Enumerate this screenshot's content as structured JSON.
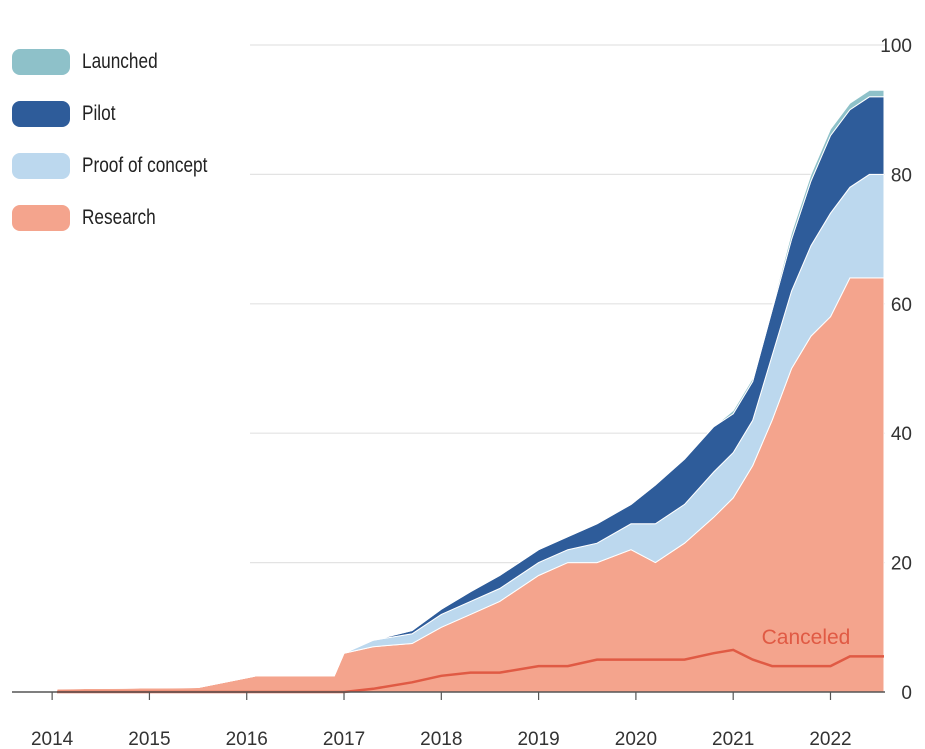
{
  "chart_data": {
    "type": "area",
    "stacked": true,
    "x_ticks": [
      "2014",
      "2015",
      "2016",
      "2017",
      "2018",
      "2019",
      "2020",
      "2021",
      "2022"
    ],
    "y_ticks": [
      0,
      20,
      40,
      60,
      80,
      100
    ],
    "ylim": [
      0,
      100
    ],
    "xlim": [
      2013.8,
      2022.7
    ],
    "grid": true,
    "legend_position": "top-left",
    "x": [
      2014.05,
      2015.5,
      2016.1,
      2016.9,
      2017.0,
      2017.3,
      2017.7,
      2018.0,
      2018.3,
      2018.6,
      2019.0,
      2019.3,
      2019.6,
      2019.95,
      2020.2,
      2020.5,
      2020.8,
      2021.0,
      2021.2,
      2021.4,
      2021.6,
      2021.8,
      2022.0,
      2022.2,
      2022.4,
      2022.55
    ],
    "series": [
      {
        "name": "Research",
        "values": [
          0.5,
          0.7,
          2.5,
          2.5,
          6,
          7,
          7.5,
          10,
          12,
          14,
          18,
          20,
          20,
          22,
          20,
          23,
          27,
          30,
          35,
          42,
          50,
          55,
          58,
          64,
          64,
          64
        ],
        "color": "#f4a48d"
      },
      {
        "name": "Proof of concept",
        "values": [
          0,
          0,
          0,
          0,
          0,
          1,
          1.5,
          2,
          2,
          2,
          2,
          2,
          3,
          4,
          6,
          6,
          7,
          7,
          7,
          10,
          12,
          14,
          16,
          14,
          16,
          16
        ],
        "color": "#bcd8ee"
      },
      {
        "name": "Pilot",
        "values": [
          0,
          0,
          0,
          0,
          0,
          0,
          0.5,
          0.8,
          1.5,
          2,
          2,
          2,
          3,
          3,
          6,
          7,
          7,
          6,
          6,
          7,
          8,
          10,
          12,
          12,
          12,
          12
        ],
        "color": "#2e5c9a"
      },
      {
        "name": "Launched",
        "values": [
          0,
          0,
          0,
          0,
          0,
          0,
          0,
          0,
          0,
          0,
          0,
          0,
          0,
          0,
          0,
          0,
          0,
          0.5,
          0.5,
          0.5,
          1,
          1,
          1,
          1,
          1,
          1
        ],
        "color": "#8ec1c9"
      }
    ],
    "canceled": {
      "label": "Canceled",
      "color": "#e05a44",
      "values": [
        0,
        0,
        0,
        0,
        0,
        0.5,
        1.5,
        2.5,
        3,
        3,
        4,
        4,
        5,
        5,
        5,
        5,
        6,
        6.5,
        5,
        4,
        4,
        4,
        4,
        5.5,
        5.5,
        5.5
      ]
    }
  },
  "legend": [
    {
      "label": "Launched",
      "color": "#8ec1c9"
    },
    {
      "label": "Pilot",
      "color": "#2e5c9a"
    },
    {
      "label": "Proof of concept",
      "color": "#bcd8ee"
    },
    {
      "label": "Research",
      "color": "#f4a48d"
    }
  ]
}
